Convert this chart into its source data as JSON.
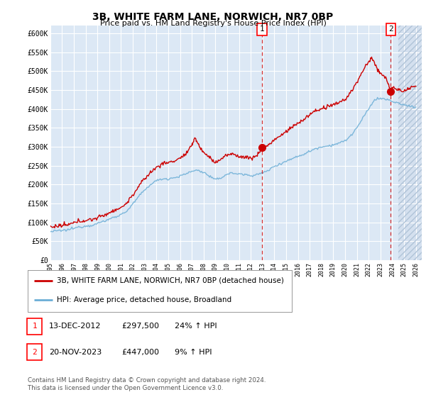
{
  "title": "3B, WHITE FARM LANE, NORWICH, NR7 0BP",
  "subtitle": "Price paid vs. HM Land Registry's House Price Index (HPI)",
  "ylabel_ticks": [
    0,
    50000,
    100000,
    150000,
    200000,
    250000,
    300000,
    350000,
    400000,
    450000,
    500000,
    550000,
    600000
  ],
  "ylabel_labels": [
    "£0",
    "£50K",
    "£100K",
    "£150K",
    "£200K",
    "£250K",
    "£300K",
    "£350K",
    "£400K",
    "£450K",
    "£500K",
    "£550K",
    "£600K"
  ],
  "ylim": [
    0,
    620000
  ],
  "xlim_start": 1995.0,
  "xlim_end": 2026.5,
  "hpi_color": "#6baed6",
  "price_color": "#cc0000",
  "marker_color": "#cc0000",
  "plot_bg_color": "#dce8f5",
  "grid_color": "#ffffff",
  "hatch_color": "#c8d8e8",
  "legend_label_red": "3B, WHITE FARM LANE, NORWICH, NR7 0BP (detached house)",
  "legend_label_blue": "HPI: Average price, detached house, Broadland",
  "sale1_label": "1",
  "sale1_date": "13-DEC-2012",
  "sale1_price": "£297,500",
  "sale1_hpi": "24% ↑ HPI",
  "sale1_x": 2012.95,
  "sale1_y": 297500,
  "sale2_label": "2",
  "sale2_date": "20-NOV-2023",
  "sale2_price": "£447,000",
  "sale2_hpi": "9% ↑ HPI",
  "sale2_x": 2023.88,
  "sale2_y": 447000,
  "hatch_start": 2024.5,
  "footer": "Contains HM Land Registry data © Crown copyright and database right 2024.\nThis data is licensed under the Open Government Licence v3.0.",
  "xticks": [
    1995,
    1996,
    1997,
    1998,
    1999,
    2000,
    2001,
    2002,
    2003,
    2004,
    2005,
    2006,
    2007,
    2008,
    2009,
    2010,
    2011,
    2012,
    2013,
    2014,
    2015,
    2016,
    2017,
    2018,
    2019,
    2020,
    2021,
    2022,
    2023,
    2024,
    2025,
    2026
  ]
}
